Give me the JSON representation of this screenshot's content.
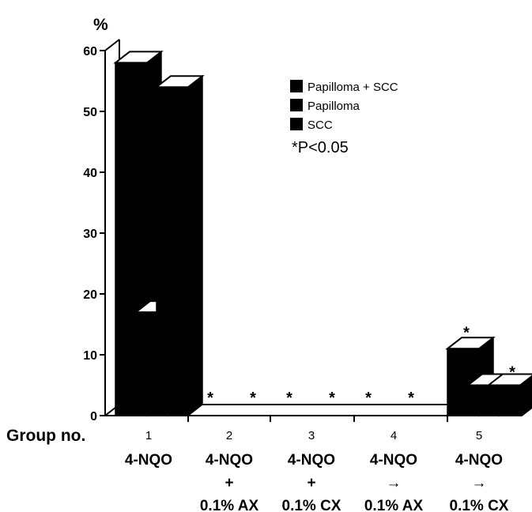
{
  "chart_data": {
    "type": "bar",
    "title": "",
    "ylabel": "%",
    "xlabel": "Group no.",
    "ylim": [
      0,
      60
    ],
    "yticks": [
      "0",
      "10",
      "20",
      "30",
      "40",
      "50",
      "60"
    ],
    "categories": [
      {
        "num": "1",
        "lines": [
          "4-NQO"
        ]
      },
      {
        "num": "2",
        "lines": [
          "4-NQO",
          "+",
          "0.1% AX"
        ]
      },
      {
        "num": "3",
        "lines": [
          "4-NQO",
          "+",
          "0.1% CX"
        ]
      },
      {
        "num": "4",
        "lines": [
          "4-NQO",
          "→",
          "0.1% AX"
        ]
      },
      {
        "num": "5",
        "lines": [
          "4-NQO",
          "→",
          "0.1% CX"
        ]
      }
    ],
    "series": [
      {
        "name": "Papilloma + SCC",
        "values": [
          58,
          0,
          0,
          0,
          11
        ]
      },
      {
        "name": "Papilloma",
        "values": [
          17,
          0,
          0,
          0,
          5
        ]
      },
      {
        "name": "SCC",
        "values": [
          54,
          0,
          0,
          0,
          5
        ]
      }
    ],
    "significance": [
      [
        false,
        false,
        false
      ],
      [
        true,
        true,
        false
      ],
      [
        true,
        true,
        false
      ],
      [
        true,
        true,
        false
      ],
      [
        true,
        false,
        true
      ]
    ],
    "annotation": "*P<0.05",
    "legend_position": "top-right",
    "colors": {
      "bar": "#000000",
      "bar_top": "#ffffff",
      "axis": "#000000"
    }
  }
}
